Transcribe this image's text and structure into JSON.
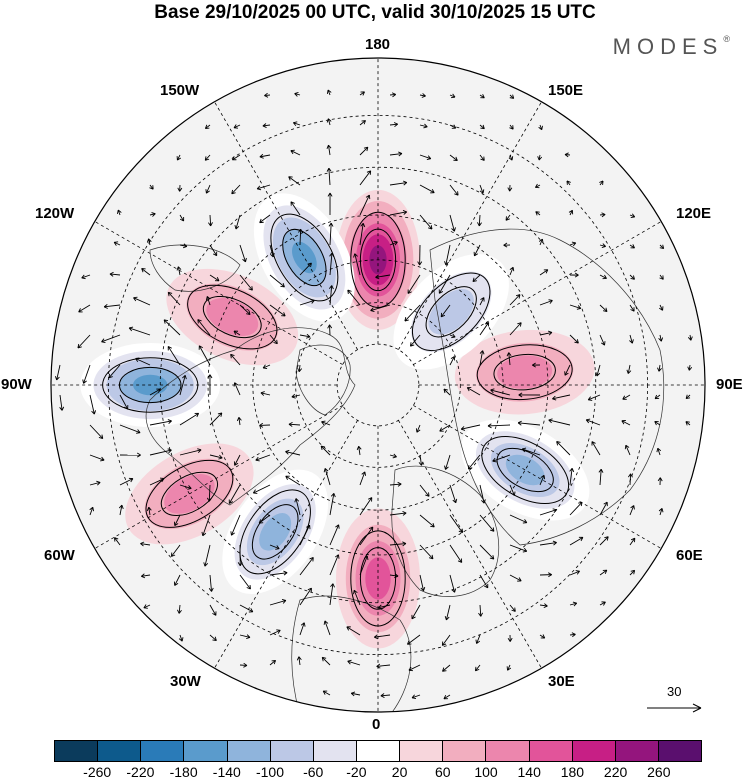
{
  "title": "Base 29/10/2025 00 UTC, valid 30/10/2025 15 UTC",
  "brand": "MODES",
  "brand_mark": "®",
  "lon_labels": {
    "n": "180",
    "nne": "150E",
    "ene": "120E",
    "e": "90E",
    "ese": "60E",
    "sse": "30E",
    "s": "0",
    "ssw": "30W",
    "wsw": "60W",
    "w": "90W",
    "wnw": "120W",
    "nnw": "150W"
  },
  "ref_vector_label": "30",
  "colorbar": {
    "colors": [
      "#0b3b5c",
      "#0d5a8c",
      "#2a7bb8",
      "#5a9bcc",
      "#8fb4dc",
      "#bcc8e6",
      "#e3e3f0",
      "#ffffff",
      "#f7d6dc",
      "#f2aebf",
      "#ec86ad",
      "#e2549a",
      "#c71f85",
      "#94157d",
      "#5a0f6e"
    ],
    "ticks": [
      "-260",
      "-220",
      "-180",
      "-140",
      "-100",
      "-60",
      "-20",
      "20",
      "60",
      "100",
      "140",
      "180",
      "220",
      "260"
    ]
  },
  "anomaly_centers": [
    {
      "name": "pos-180",
      "lon": 180,
      "lat": 60,
      "value": 200
    },
    {
      "name": "neg-150w",
      "lon": -150,
      "lat": 55,
      "value": -160
    },
    {
      "name": "neg-90w",
      "lon": -90,
      "lat": 38,
      "value": -160
    },
    {
      "name": "neg-40w",
      "lon": -35,
      "lat": 48,
      "value": -150
    },
    {
      "name": "pos-0",
      "lon": 0,
      "lat": 45,
      "value": 120
    },
    {
      "name": "neg-60e",
      "lon": 60,
      "lat": 50,
      "value": -140
    },
    {
      "name": "pos-90e",
      "lon": 95,
      "lat": 55,
      "value": 100
    },
    {
      "name": "pos-120w",
      "lon": -115,
      "lat": 52,
      "value": 80
    },
    {
      "name": "pos-60w",
      "lon": -60,
      "lat": 40,
      "value": 80
    },
    {
      "name": "neg-135e",
      "lon": 135,
      "lat": 65,
      "value": -80
    }
  ]
}
